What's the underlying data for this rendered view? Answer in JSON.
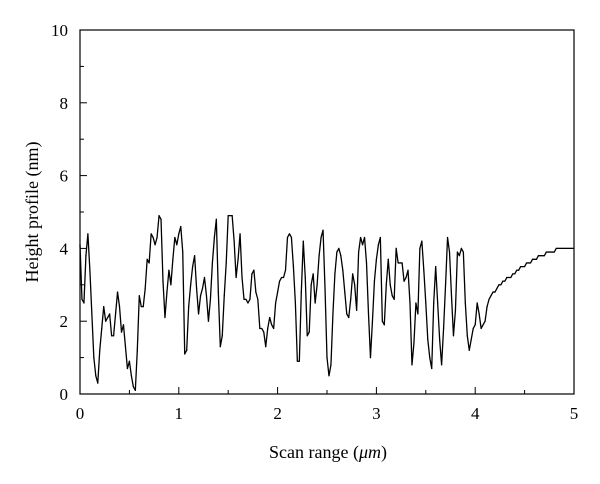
{
  "chart_data": {
    "type": "line",
    "xlabel_prefix": "Scan range (",
    "xlabel_unit": "μm",
    "xlabel_suffix": ")",
    "ylabel": "Height profile (nm)",
    "xlim": [
      0,
      5
    ],
    "ylim": [
      0,
      10
    ],
    "xticks": [
      "0",
      "1",
      "2",
      "3",
      "4",
      "5"
    ],
    "yticks": [
      "0",
      "2",
      "4",
      "6",
      "8",
      "10"
    ],
    "grid": false,
    "line_color": "#000000",
    "series": [
      {
        "x": [
          0.0,
          0.02,
          0.04,
          0.06,
          0.08,
          0.1,
          0.12,
          0.14,
          0.16,
          0.18,
          0.2,
          0.22,
          0.24,
          0.26,
          0.28,
          0.3,
          0.32,
          0.34,
          0.36,
          0.38,
          0.4,
          0.42,
          0.44,
          0.46,
          0.48,
          0.5,
          0.52,
          0.54,
          0.56,
          0.58,
          0.6,
          0.62,
          0.64,
          0.66,
          0.68,
          0.7,
          0.72,
          0.74,
          0.76,
          0.78,
          0.8,
          0.82,
          0.84,
          0.86,
          0.88,
          0.9,
          0.92,
          0.94,
          0.96,
          0.98,
          1.0,
          1.02,
          1.04,
          1.06,
          1.08,
          1.1,
          1.12,
          1.14,
          1.16,
          1.18,
          1.2,
          1.22,
          1.24,
          1.26,
          1.28,
          1.3,
          1.32,
          1.34,
          1.36,
          1.38,
          1.4,
          1.42,
          1.44,
          1.46,
          1.48,
          1.5,
          1.52,
          1.54,
          1.56,
          1.58,
          1.6,
          1.62,
          1.64,
          1.66,
          1.68,
          1.7,
          1.72,
          1.74,
          1.76,
          1.78,
          1.8,
          1.82,
          1.84,
          1.86,
          1.88,
          1.9,
          1.92,
          1.94,
          1.96,
          1.98,
          2.0,
          2.02,
          2.04,
          2.06,
          2.08,
          2.1,
          2.12,
          2.14,
          2.16,
          2.18,
          2.2,
          2.22,
          2.24,
          2.26,
          2.28,
          2.3,
          2.32,
          2.34,
          2.36,
          2.38,
          2.4,
          2.42,
          2.44,
          2.46,
          2.48,
          2.5,
          2.52,
          2.54,
          2.56,
          2.58,
          2.6,
          2.62,
          2.64,
          2.66,
          2.68,
          2.7,
          2.72,
          2.74,
          2.76,
          2.78,
          2.8,
          2.82,
          2.84,
          2.86,
          2.88,
          2.9,
          2.92,
          2.94,
          2.96,
          2.98,
          3.0,
          3.02,
          3.04,
          3.06,
          3.08,
          3.1,
          3.12,
          3.14,
          3.16,
          3.18,
          3.2,
          3.22,
          3.24,
          3.26,
          3.28,
          3.3,
          3.32,
          3.34,
          3.36,
          3.38,
          3.4,
          3.42,
          3.44,
          3.46,
          3.48,
          3.5,
          3.52,
          3.54,
          3.56,
          3.58,
          3.6,
          3.62,
          3.64,
          3.66,
          3.68,
          3.7,
          3.72,
          3.74,
          3.76,
          3.78,
          3.8,
          3.82,
          3.84,
          3.86,
          3.88,
          3.9,
          3.92,
          3.94,
          3.96,
          3.98,
          4.0,
          4.02,
          4.04,
          4.06,
          4.08,
          4.1,
          4.12,
          4.14,
          4.16,
          4.18,
          4.2,
          4.22,
          4.24,
          4.26,
          4.28,
          4.3,
          4.32,
          4.34,
          4.36,
          4.38,
          4.4,
          4.42,
          4.44,
          4.46,
          4.48,
          4.5,
          4.52,
          4.54,
          4.56,
          4.58,
          4.6,
          4.62,
          4.64,
          4.66,
          4.68,
          4.7,
          4.72,
          4.74,
          4.76,
          4.78,
          4.8,
          4.82,
          4.84,
          4.86,
          4.88,
          4.9,
          4.92,
          4.94,
          4.96,
          4.98,
          5.0
        ],
        "y": [
          4.1,
          2.6,
          2.5,
          3.8,
          4.4,
          3.4,
          2.2,
          1.0,
          0.5,
          0.3,
          1.2,
          1.8,
          2.4,
          2.0,
          2.1,
          2.2,
          1.6,
          1.6,
          2.2,
          2.8,
          2.4,
          1.7,
          1.9,
          1.3,
          0.7,
          0.9,
          0.5,
          0.2,
          0.1,
          1.2,
          2.7,
          2.4,
          2.4,
          2.9,
          3.7,
          3.6,
          4.4,
          4.3,
          4.1,
          4.3,
          4.9,
          4.8,
          3.1,
          2.1,
          2.8,
          3.4,
          3.0,
          3.7,
          4.3,
          4.1,
          4.4,
          4.6,
          3.9,
          1.1,
          1.2,
          2.4,
          3.0,
          3.5,
          3.8,
          2.9,
          2.2,
          2.7,
          2.9,
          3.2,
          2.7,
          2.0,
          2.6,
          3.6,
          4.3,
          4.8,
          2.8,
          1.3,
          1.6,
          2.7,
          3.6,
          4.9,
          4.9,
          4.9,
          4.2,
          3.2,
          3.7,
          4.4,
          3.2,
          2.6,
          2.6,
          2.5,
          2.6,
          3.3,
          3.4,
          2.8,
          2.6,
          1.8,
          1.8,
          1.7,
          1.3,
          1.8,
          2.1,
          1.9,
          1.8,
          2.5,
          2.8,
          3.1,
          3.2,
          3.2,
          3.4,
          4.3,
          4.4,
          4.3,
          3.5,
          2.5,
          0.9,
          0.9,
          2.8,
          4.2,
          3.2,
          1.6,
          1.7,
          3.0,
          3.3,
          2.5,
          3.0,
          3.8,
          4.3,
          4.5,
          2.9,
          1.0,
          0.5,
          0.8,
          2.2,
          3.3,
          3.9,
          4.0,
          3.8,
          3.4,
          2.8,
          2.2,
          2.1,
          2.6,
          3.3,
          3.0,
          2.3,
          3.9,
          4.3,
          4.1,
          4.3,
          3.6,
          2.2,
          1.0,
          2.0,
          3.1,
          3.7,
          4.1,
          4.3,
          2.0,
          1.9,
          3.0,
          3.7,
          3.0,
          2.7,
          2.6,
          4.0,
          3.6,
          3.6,
          3.6,
          3.1,
          3.2,
          3.4,
          2.5,
          0.8,
          1.4,
          2.5,
          2.2,
          4.0,
          4.2,
          3.4,
          2.5,
          1.5,
          1.0,
          0.7,
          2.5,
          3.5,
          2.5,
          1.5,
          0.8,
          1.8,
          3.0,
          4.3,
          3.9,
          2.7,
          1.6,
          2.3,
          3.9,
          3.8,
          4.0,
          3.9,
          2.5,
          1.6,
          1.2,
          1.5,
          1.8,
          1.9,
          2.5,
          2.2,
          1.8,
          1.9,
          2.0,
          2.4,
          2.6,
          2.7,
          2.8,
          2.8,
          2.9,
          3.0,
          3.0,
          3.1,
          3.1,
          3.2,
          3.2,
          3.2,
          3.3,
          3.3,
          3.4,
          3.4,
          3.5,
          3.5,
          3.5,
          3.6,
          3.6,
          3.6,
          3.7,
          3.7,
          3.7,
          3.8,
          3.8,
          3.8,
          3.8,
          3.9,
          3.9,
          3.9,
          3.9,
          3.9,
          4.0,
          4.0,
          4.0,
          4.0,
          4.0,
          4.0,
          4.0,
          4.0,
          4.0,
          4.0
        ]
      }
    ]
  }
}
